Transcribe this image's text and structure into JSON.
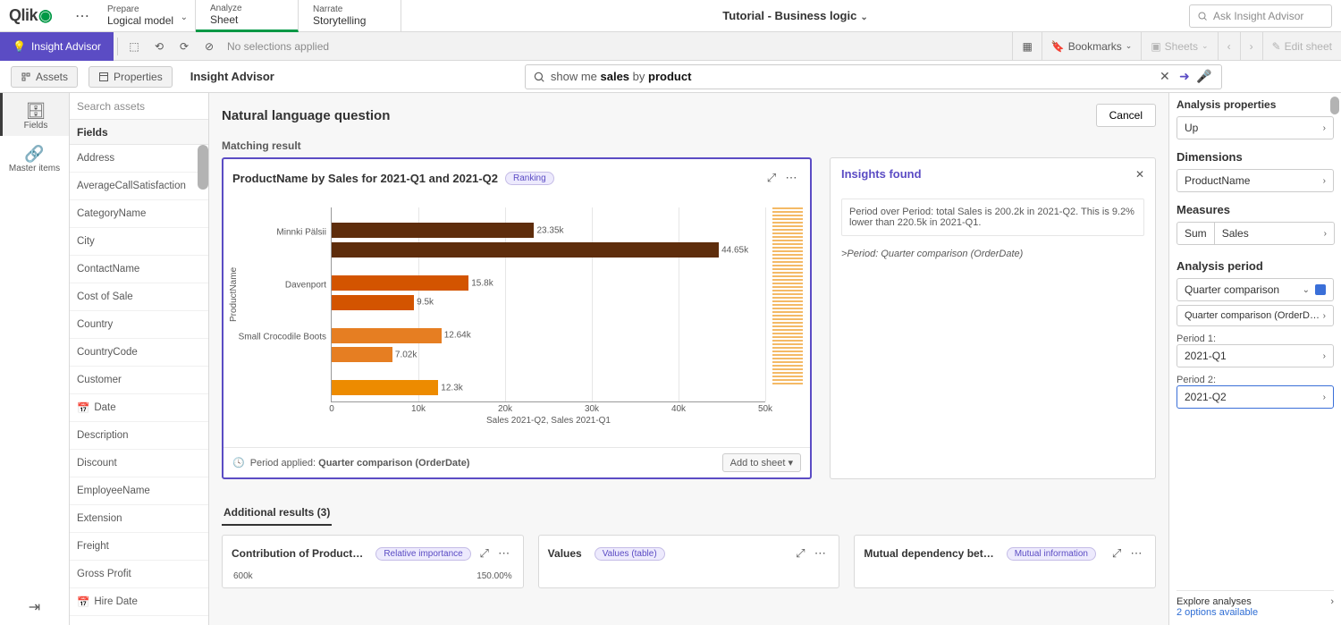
{
  "topbar": {
    "logo_text": "Qlik",
    "modes": [
      {
        "caption": "Prepare",
        "title": "Logical model",
        "has_chevron": true,
        "active": false
      },
      {
        "caption": "Analyze",
        "title": "Sheet",
        "has_chevron": false,
        "active": true
      },
      {
        "caption": "Narrate",
        "title": "Storytelling",
        "has_chevron": false,
        "active": false
      }
    ],
    "doc_title": "Tutorial - Business logic",
    "ask_placeholder": "Ask Insight Advisor"
  },
  "selbar": {
    "insight_label": "Insight Advisor",
    "nosel_text": "No selections applied",
    "bookmarks": "Bookmarks",
    "sheets": "Sheets",
    "edit": "Edit sheet"
  },
  "row3": {
    "assets": "Assets",
    "properties": "Properties",
    "advisor_title": "Insight Advisor",
    "query_prefix": "show me ",
    "query_em1": "sales",
    "query_mid": " by ",
    "query_em2": "product"
  },
  "leftrail": {
    "fields": "Fields",
    "master": "Master items"
  },
  "fieldspanel": {
    "search_placeholder": "Search assets",
    "header": "Fields",
    "items": [
      {
        "label": "Address"
      },
      {
        "label": "AverageCallSatisfaction"
      },
      {
        "label": "CategoryName"
      },
      {
        "label": "City"
      },
      {
        "label": "ContactName"
      },
      {
        "label": "Cost of Sale"
      },
      {
        "label": "Country"
      },
      {
        "label": "CountryCode"
      },
      {
        "label": "Customer"
      },
      {
        "label": "Date",
        "icon": "calendar"
      },
      {
        "label": "Description"
      },
      {
        "label": "Discount"
      },
      {
        "label": "EmployeeName"
      },
      {
        "label": "Extension"
      },
      {
        "label": "Freight"
      },
      {
        "label": "Gross Profit"
      },
      {
        "label": "Hire Date",
        "icon": "calendar"
      }
    ]
  },
  "center": {
    "nlq_heading": "Natural language question",
    "cancel": "Cancel",
    "matching": "Matching result",
    "chart": {
      "title": "ProductName by Sales for 2021-Q1 and 2021-Q2",
      "badge": "Ranking",
      "ylabel": "ProductName",
      "xlabel": "Sales 2021-Q2, Sales 2021-Q1",
      "xmax": 50000,
      "xticks": [
        {
          "pos": 0,
          "label": "0"
        },
        {
          "pos": 20,
          "label": "10k"
        },
        {
          "pos": 40,
          "label": "20k"
        },
        {
          "pos": 60,
          "label": "30k"
        },
        {
          "pos": 80,
          "label": "40k"
        },
        {
          "pos": 100,
          "label": "50k"
        }
      ],
      "bars": [
        {
          "y": 8,
          "pct": 46.7,
          "color": "#5e2d0c",
          "vlabel": "23.35k"
        },
        {
          "y": 18,
          "pct": 89.3,
          "color": "#5e2d0c",
          "vlabel": "44.65k"
        },
        {
          "y": 35,
          "pct": 31.6,
          "color": "#d35400",
          "vlabel": "15.8k"
        },
        {
          "y": 45,
          "pct": 19.0,
          "color": "#d35400",
          "vlabel": "9.5k"
        },
        {
          "y": 62,
          "pct": 25.3,
          "color": "#e67e22",
          "vlabel": "12.64k"
        },
        {
          "y": 72,
          "pct": 14.0,
          "color": "#e67e22",
          "vlabel": "7.02k"
        },
        {
          "y": 89,
          "pct": 24.6,
          "color": "#ed8b00",
          "vlabel": "12.3k"
        }
      ],
      "categories": [
        {
          "y": 13,
          "label": "Minnki Pälsii"
        },
        {
          "y": 40,
          "label": "Davenport"
        },
        {
          "y": 67,
          "label": "Small Crocodile Boots"
        }
      ],
      "foot_prefix": "Period applied:",
      "foot_value": "Quarter comparison (OrderDate)",
      "add_to_sheet": "Add to sheet"
    },
    "insights": {
      "title": "Insights found",
      "bullet": "Period over Period: total Sales is 200.2k in 2021-Q2. This is 9.2% lower than 220.5k in 2021-Q1.",
      "source": ">Period: Quarter comparison (OrderDate)"
    },
    "additional": {
      "tab": "Additional results (3)",
      "cards": [
        {
          "title": "Contribution of Product…",
          "badge": "Relative importance",
          "lines": [
            "600k",
            "150.00%"
          ]
        },
        {
          "title": "Values",
          "badge": "Values (table)",
          "lines": []
        },
        {
          "title": "Mutual dependency bet…",
          "badge": "Mutual information",
          "lines": []
        }
      ]
    }
  },
  "right": {
    "title": "Analysis properties",
    "row1": "Up",
    "dimensions": "Dimensions",
    "dim_token": "ProductName",
    "measures": "Measures",
    "measure_agg": "Sum",
    "measure_field": "Sales",
    "period_h": "Analysis period",
    "period_token": "Quarter comparison",
    "period_sub": "Quarter comparison (OrderD…",
    "p1_label": "Period 1:",
    "p1_value": "2021-Q1",
    "p2_label": "Period 2:",
    "p2_value": "2021-Q2",
    "explore": "Explore analyses",
    "explore_link": "2 options available"
  }
}
